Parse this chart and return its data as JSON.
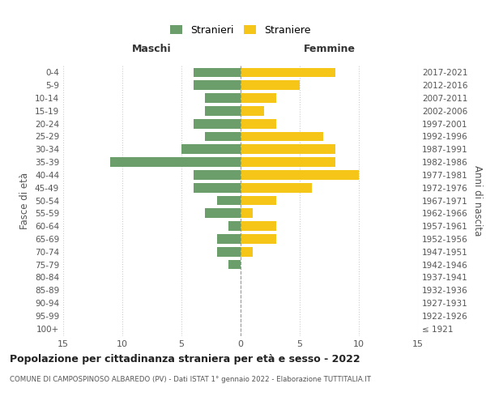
{
  "age_groups": [
    "100+",
    "95-99",
    "90-94",
    "85-89",
    "80-84",
    "75-79",
    "70-74",
    "65-69",
    "60-64",
    "55-59",
    "50-54",
    "45-49",
    "40-44",
    "35-39",
    "30-34",
    "25-29",
    "20-24",
    "15-19",
    "10-14",
    "5-9",
    "0-4"
  ],
  "birth_years": [
    "≤ 1921",
    "1922-1926",
    "1927-1931",
    "1932-1936",
    "1937-1941",
    "1942-1946",
    "1947-1951",
    "1952-1956",
    "1957-1961",
    "1962-1966",
    "1967-1971",
    "1972-1976",
    "1977-1981",
    "1982-1986",
    "1987-1991",
    "1992-1996",
    "1997-2001",
    "2002-2006",
    "2007-2011",
    "2012-2016",
    "2017-2021"
  ],
  "maschi": [
    0,
    0,
    0,
    0,
    0,
    1,
    2,
    2,
    1,
    3,
    2,
    4,
    4,
    11,
    5,
    3,
    4,
    3,
    3,
    4,
    4
  ],
  "femmine": [
    0,
    0,
    0,
    0,
    0,
    0,
    1,
    3,
    3,
    1,
    3,
    6,
    10,
    8,
    8,
    7,
    3,
    2,
    3,
    5,
    8
  ],
  "maschi_color": "#6b9e6b",
  "femmine_color": "#f5c518",
  "xlim": 15,
  "title": "Popolazione per cittadinanza straniera per età e sesso - 2022",
  "subtitle": "COMUNE DI CAMPOSPINOSO ALBAREDO (PV) - Dati ISTAT 1° gennaio 2022 - Elaborazione TUTTITALIA.IT",
  "ylabel_left": "Fasce di età",
  "ylabel_right": "Anni di nascita",
  "header_left": "Maschi",
  "header_right": "Femmine",
  "legend_stranieri": "Stranieri",
  "legend_straniere": "Straniere",
  "background_color": "#ffffff",
  "grid_color": "#cccccc",
  "tick_color": "#555555"
}
